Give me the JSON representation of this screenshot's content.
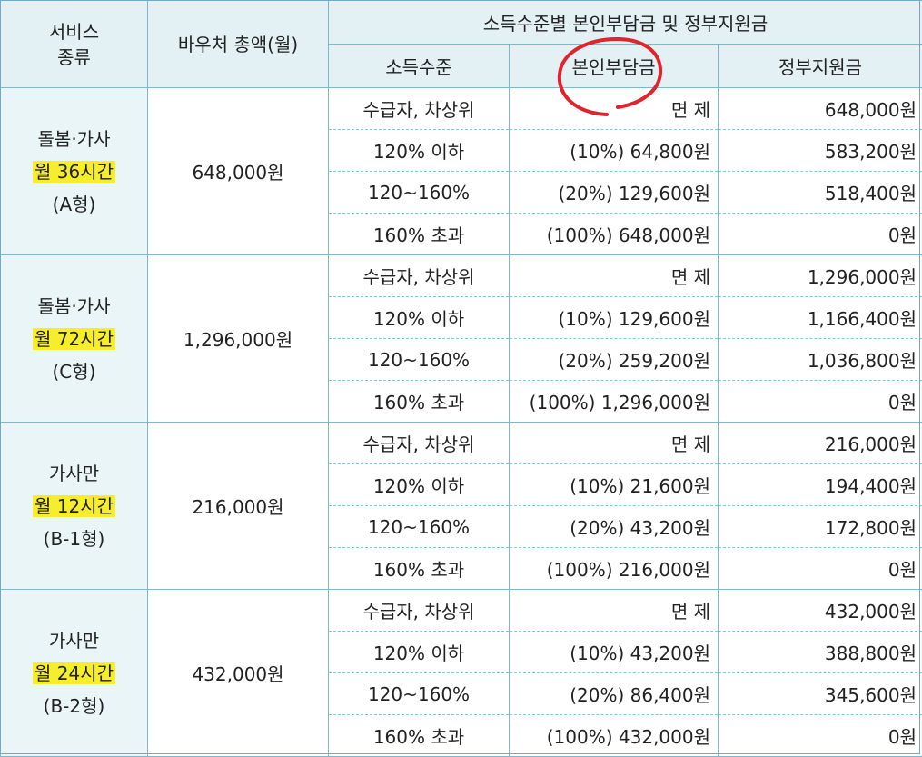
{
  "header": {
    "service_type": "서비스\n종류",
    "voucher_total": "바우처 총액(월)",
    "group_title": "소득수준별 본인부담금 및 정부지원금",
    "col_income": "소득수준",
    "col_self": "본인부담금",
    "col_gov": "정부지원금"
  },
  "groups": [
    {
      "service_line1": "돌봄·가사",
      "service_line2": "월 36시간",
      "service_line3": "(A형)",
      "total": "648,000원",
      "rows": [
        {
          "level": "수급자, 차상위",
          "self": "면 제",
          "gov": "648,000원"
        },
        {
          "level": "120% 이하",
          "self": "(10%) 64,800원",
          "gov": "583,200원"
        },
        {
          "level": "120~160%",
          "self": "(20%) 129,600원",
          "gov": "518,400원"
        },
        {
          "level": "160% 초과",
          "self": "(100%) 648,000원",
          "gov": "0원"
        }
      ]
    },
    {
      "service_line1": "돌봄·가사",
      "service_line2": "월 72시간",
      "service_line3": "(C형)",
      "total": "1,296,000원",
      "rows": [
        {
          "level": "수급자, 차상위",
          "self": "면 제",
          "gov": "1,296,000원"
        },
        {
          "level": "120% 이하",
          "self": "(10%) 129,600원",
          "gov": "1,166,400원"
        },
        {
          "level": "120~160%",
          "self": "(20%) 259,200원",
          "gov": "1,036,800원"
        },
        {
          "level": "160% 초과",
          "self": "(100%) 1,296,000원",
          "gov": "0원"
        }
      ]
    },
    {
      "service_line1": "가사만",
      "service_line2": "월 12시간",
      "service_line3": "(B-1형)",
      "total": "216,000원",
      "rows": [
        {
          "level": "수급자, 차상위",
          "self": "면 제",
          "gov": "216,000원"
        },
        {
          "level": "120% 이하",
          "self": "(10%) 21,600원",
          "gov": "194,400원"
        },
        {
          "level": "120~160%",
          "self": "(20%) 43,200원",
          "gov": "172,800원"
        },
        {
          "level": "160% 초과",
          "self": "(100%) 216,000원",
          "gov": "0원"
        }
      ]
    },
    {
      "service_line1": "가사만",
      "service_line2": "월 24시간",
      "service_line3": "(B-2형)",
      "total": "432,000원",
      "rows": [
        {
          "level": "수급자, 차상위",
          "self": "면 제",
          "gov": "432,000원"
        },
        {
          "level": "120% 이하",
          "self": "(10%) 43,200원",
          "gov": "388,800원"
        },
        {
          "level": "120~160%",
          "self": "(20%) 86,400원",
          "gov": "345,600원"
        },
        {
          "level": "160% 초과",
          "self": "(100%) 432,000원",
          "gov": "0원"
        }
      ]
    }
  ],
  "colors": {
    "header_bg": "#e3f1f4",
    "border": "#7fb7cf",
    "highlight": "#f6ee2a",
    "annotation_circle": "#e0242c"
  }
}
